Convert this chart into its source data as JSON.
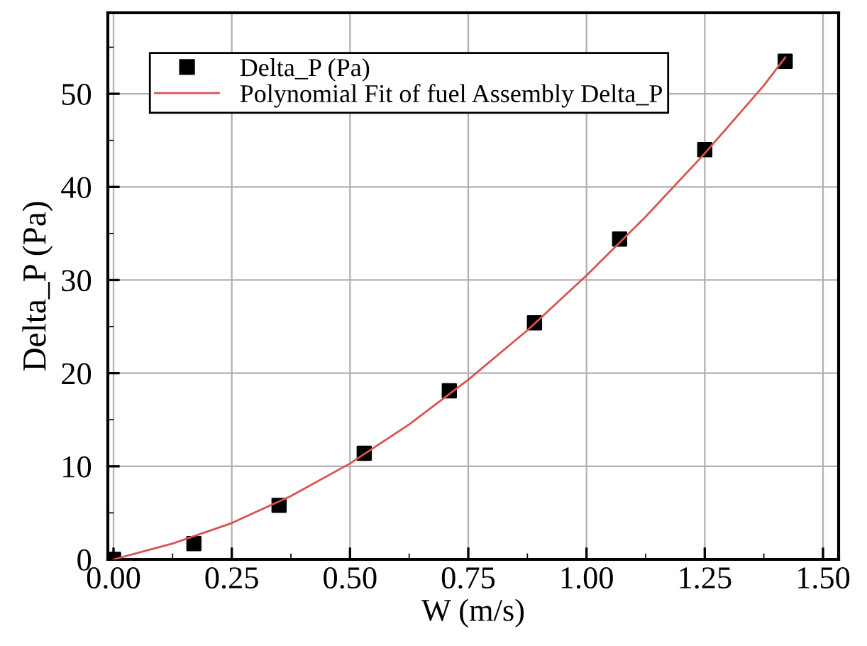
{
  "chart_data": {
    "type": "scatter",
    "xlabel": "W (m/s)",
    "ylabel": "Delta_P (Pa)",
    "xlim": [
      -0.012,
      1.533
    ],
    "ylim": [
      0,
      58.7
    ],
    "xticks": [
      {
        "value": 0,
        "label": "0.00"
      },
      {
        "value": 0.25,
        "label": "0.25"
      },
      {
        "value": 0.5,
        "label": "0.50"
      },
      {
        "value": 0.75,
        "label": "0.75"
      },
      {
        "value": 1.0,
        "label": "1.00"
      },
      {
        "value": 1.25,
        "label": "1.25"
      },
      {
        "value": 1.5,
        "label": "1.50"
      }
    ],
    "yticks": [
      0,
      10,
      20,
      30,
      40,
      50
    ],
    "grid": true,
    "legend": "top left",
    "series": [
      {
        "name": "Delta_P (Pa)",
        "marker": "square",
        "color": "#000000",
        "x": [
          0,
          0.17,
          0.35,
          0.53,
          0.71,
          0.89,
          1.07,
          1.25,
          1.42
        ],
        "values": [
          0,
          1.7,
          5.8,
          11.4,
          18.1,
          25.4,
          34.4,
          44.0,
          53.5
        ]
      },
      {
        "name": "Polynomial Fit of fuel Assembly Delta_P",
        "type": "line",
        "marker": "none",
        "line_style": "solid",
        "color": "#d9534f",
        "x": [
          0,
          0.125,
          0.25,
          0.375,
          0.5,
          0.625,
          0.75,
          0.875,
          1.0,
          1.125,
          1.25,
          1.375,
          1.42
        ],
        "values": [
          0,
          1.7,
          3.9,
          6.8,
          10.3,
          14.5,
          19.3,
          24.6,
          30.5,
          36.8,
          43.6,
          50.9,
          53.9
        ]
      }
    ]
  }
}
